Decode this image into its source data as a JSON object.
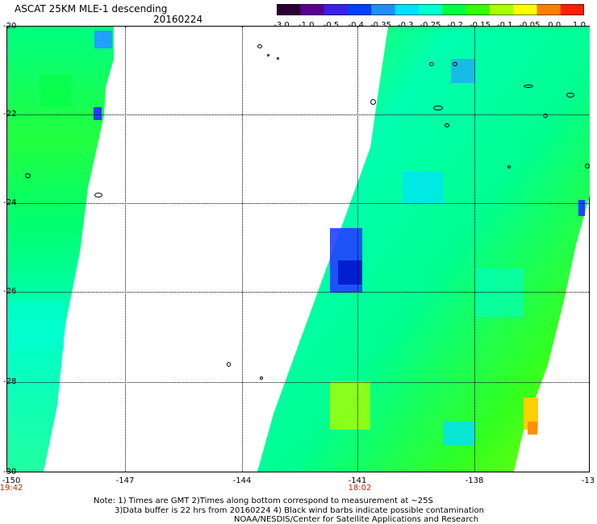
{
  "header": {
    "title": "ASCAT 25KM MLE-1 descending",
    "date": "20160224"
  },
  "colorbar": {
    "labels": [
      "-3.0",
      "-1.0",
      "-0.5",
      "-0.4",
      "-0.35",
      "-0.3",
      "-0.25",
      "-0.2",
      "-0.15",
      "-0.1",
      "-0.05",
      "0.0",
      "1.0"
    ],
    "colors": [
      "#2b0033",
      "#5a0090",
      "#3a20e8",
      "#0040ff",
      "#1e90ff",
      "#00e0ff",
      "#00ffd0",
      "#00ff40",
      "#33ff00",
      "#aaff00",
      "#ffff00",
      "#ff8000",
      "#ff2000"
    ]
  },
  "map": {
    "lat_labels": [
      "-20",
      "-22",
      "-24",
      "-26",
      "-28",
      "-30"
    ],
    "lon_labels": [
      "-150",
      "-147",
      "-144",
      "-141",
      "-138",
      "-13"
    ],
    "time_labels": [
      "19:42",
      "18:02"
    ]
  },
  "footer": {
    "line1": "Note: 1) Times are GMT 2)Times along bottom correspond to measurement at ~25S",
    "line2": "3)Data buffer is 22 hrs from 20160224 4) Black wind barbs indicate possible contamination",
    "line3": "NOAA/NESDIS/Center for Satellite Applications and Research"
  }
}
